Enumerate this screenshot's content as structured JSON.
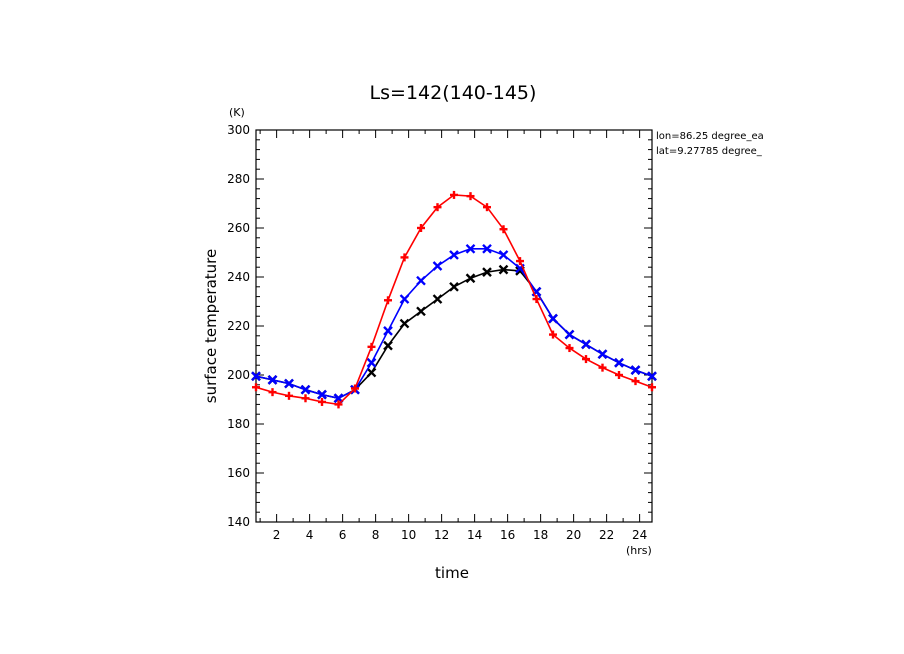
{
  "chart_data": {
    "type": "line",
    "title": "Ls=142(140-145)",
    "xlabel": "time",
    "ylabel": "surface temperature",
    "x_unit": "(hrs)",
    "y_unit": "(K)",
    "xlim": [
      0.75,
      24.75
    ],
    "ylim": [
      140,
      300
    ],
    "xticks": [
      2,
      4,
      6,
      8,
      10,
      12,
      14,
      16,
      18,
      20,
      22,
      24
    ],
    "yticks": [
      140,
      160,
      180,
      200,
      220,
      240,
      260,
      280,
      300
    ],
    "annotations": [
      "lon=86.25 degree_ea",
      "lat=9.27785 degree_"
    ],
    "grid": false,
    "x": [
      0.75,
      1.75,
      2.75,
      3.75,
      4.75,
      5.75,
      6.75,
      7.75,
      8.75,
      9.75,
      10.75,
      11.75,
      12.75,
      13.75,
      14.75,
      15.75,
      16.75,
      17.75,
      18.75,
      19.75,
      20.75,
      21.75,
      22.75,
      23.75,
      24.75
    ],
    "series": [
      {
        "color": "#000000",
        "marker": "x",
        "values": [
          199.5,
          198,
          196.5,
          194,
          192,
          190.5,
          194,
          201,
          212,
          221,
          226,
          231,
          236,
          239.5,
          242,
          243,
          242.5,
          234,
          223,
          216.5,
          212.5,
          208.5,
          205,
          202,
          199.5
        ]
      },
      {
        "color": "#0000ff",
        "marker": "x",
        "values": [
          199.5,
          198,
          196.5,
          194,
          192,
          190.5,
          194,
          205,
          218,
          231,
          238.5,
          244.5,
          249,
          251.5,
          251.5,
          249,
          243.5,
          234,
          223,
          216.5,
          212.5,
          208.5,
          205,
          202,
          199.5
        ]
      },
      {
        "color": "#ff0000",
        "marker": "+",
        "values": [
          195,
          193,
          191.5,
          190.5,
          189,
          188,
          194.5,
          211.5,
          230.5,
          248,
          260,
          268.5,
          273.5,
          273,
          268.5,
          259.5,
          246.5,
          231,
          216.5,
          211,
          206.5,
          203,
          200,
          197.5,
          195
        ]
      }
    ]
  }
}
